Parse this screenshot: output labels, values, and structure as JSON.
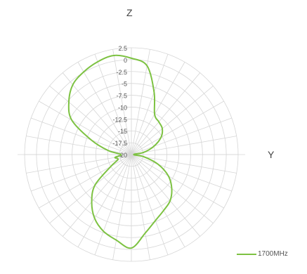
{
  "chart_data": {
    "type": "polar-line",
    "top_label": "Z",
    "right_label": "Y",
    "radial_ticks": [
      "2.5",
      "0",
      "-2.5",
      "-5",
      "-7.5",
      "-10",
      "-12.5",
      "-15",
      "-17.5",
      "-20"
    ],
    "r_range": [
      -20,
      2.5
    ],
    "angular_spokes": 36,
    "grid": true,
    "legend_position": "bottom-right",
    "series": [
      {
        "name": "1700MHz",
        "color": "#7dc242",
        "angle_deg": [
          0,
          10,
          20,
          30,
          40,
          50,
          60,
          70,
          80,
          90,
          100,
          110,
          120,
          130,
          140,
          150,
          160,
          170,
          180,
          190,
          200,
          210,
          220,
          230,
          240,
          250,
          260,
          270,
          280,
          290,
          300,
          310,
          320,
          330,
          340,
          350
        ],
        "values": [
          0.3,
          -1.0,
          -6.0,
          -10.2,
          -11.0,
          -11.5,
          -12.8,
          -15.0,
          -17.4,
          -19.5,
          -17.3,
          -14.0,
          -11.0,
          -8.9,
          -7.3,
          -6.4,
          -5.2,
          -3.2,
          -0.3,
          -1.7,
          -2.8,
          -4.5,
          -7.0,
          -10.0,
          -15.0,
          -17.0,
          -16.5,
          -17.8,
          -15.0,
          -11.0,
          -5.5,
          -2.8,
          -0.8,
          0.1,
          0.8,
          1.2
        ]
      }
    ]
  },
  "colors": {
    "grid": "#d6d6d6",
    "axis_text": "#555555"
  }
}
